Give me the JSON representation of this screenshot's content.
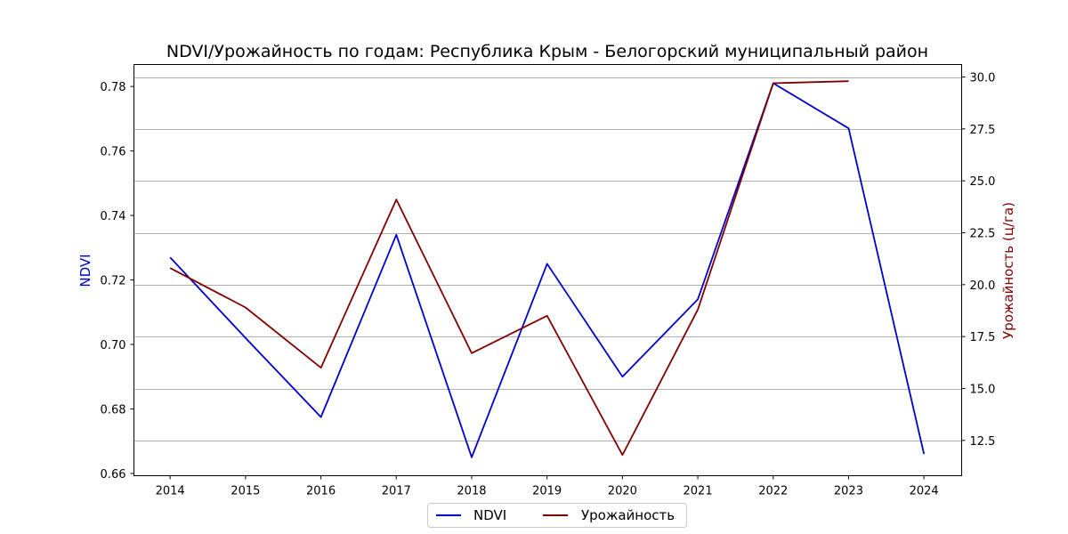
{
  "chart_data": {
    "type": "line",
    "title": "NDVI/Урожайность по годам: Республика Крым - Белогорский муниципальный район",
    "x": [
      2014,
      2015,
      2016,
      2017,
      2018,
      2019,
      2020,
      2021,
      2022,
      2023,
      2024
    ],
    "x_tick_labels": [
      "2014",
      "2015",
      "2016",
      "2017",
      "2018",
      "2019",
      "2020",
      "2021",
      "2022",
      "2023",
      "2024"
    ],
    "xlim": [
      2013.52,
      2024.5
    ],
    "y_left": {
      "label": "NDVI",
      "color": "#0000cc",
      "lim": [
        0.6593,
        0.7868
      ],
      "ticks": [
        0.66,
        0.68,
        0.7,
        0.72,
        0.74,
        0.76,
        0.78
      ],
      "tick_labels": [
        "0.66",
        "0.68",
        "0.70",
        "0.72",
        "0.74",
        "0.76",
        "0.78"
      ]
    },
    "y_right": {
      "label": "Урожайность (ц/га)",
      "color": "#800000",
      "lim": [
        10.8,
        30.6
      ],
      "ticks": [
        12.5,
        15.0,
        17.5,
        20.0,
        22.5,
        25.0,
        27.5,
        30.0
      ],
      "tick_labels": [
        "12.5",
        "15.0",
        "17.5",
        "20.0",
        "22.5",
        "25.0",
        "27.5",
        "30.0"
      ]
    },
    "grid": "horizontal, right axis",
    "legend_position": "bottom-center",
    "series": [
      {
        "name": "NDVI",
        "axis": "left",
        "color": "#0000cc",
        "x": [
          2014,
          2015,
          2016,
          2017,
          2018,
          2019,
          2020,
          2021,
          2022,
          2023,
          2024
        ],
        "values": [
          0.727,
          0.702,
          0.6775,
          0.734,
          0.665,
          0.725,
          0.69,
          0.714,
          0.781,
          0.767,
          0.666
        ]
      },
      {
        "name": "Урожайность",
        "axis": "right",
        "color": "#800000",
        "x": [
          2014,
          2015,
          2016,
          2017,
          2018,
          2019,
          2020,
          2021,
          2022,
          2023
        ],
        "values": [
          20.8,
          18.9,
          16.0,
          24.1,
          16.7,
          18.5,
          11.8,
          18.8,
          29.7,
          29.8
        ]
      }
    ]
  }
}
